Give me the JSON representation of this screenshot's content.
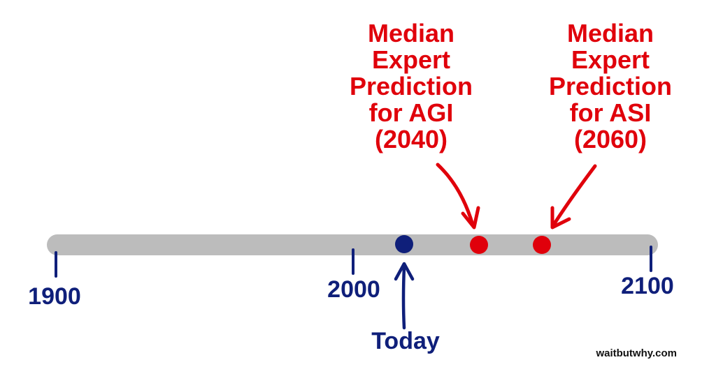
{
  "timeline": {
    "ticks": [
      {
        "year": 1900,
        "label": "1900"
      },
      {
        "year": 2000,
        "label": "2000"
      },
      {
        "year": 2100,
        "label": "2100"
      }
    ],
    "today": {
      "year": 2015,
      "label": "Today",
      "color": "#0f1f7a"
    },
    "events": [
      {
        "year": 2040,
        "lines": [
          "Median",
          "Expert",
          "Prediction",
          "for AGI",
          "(2040)"
        ],
        "color": "#e0000b"
      },
      {
        "year": 2060,
        "lines": [
          "Median",
          "Expert",
          "Prediction",
          "for ASI",
          "(2060)"
        ],
        "color": "#e0000b"
      }
    ],
    "bar_color": "#bcbcbc",
    "tick_color": "#0f1f7a"
  },
  "credit": "waitbutwhy.com"
}
